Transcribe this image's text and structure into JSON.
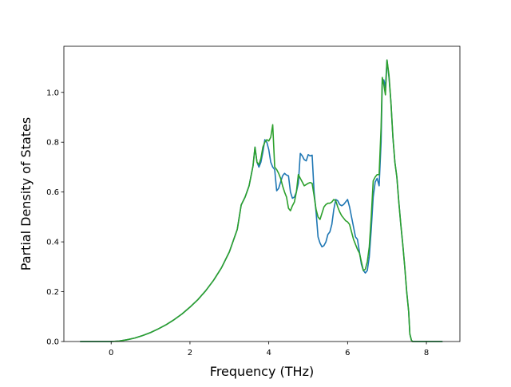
{
  "chart_data": {
    "type": "line",
    "title": "",
    "xlabel": "Frequency (THz)",
    "ylabel": "Partial Density of States",
    "xlim": [
      -1.2,
      8.85
    ],
    "ylim": [
      0.0,
      1.185
    ],
    "xticks": [
      0,
      2,
      4,
      6,
      8
    ],
    "yticks": [
      0.0,
      0.2,
      0.4,
      0.6,
      0.8,
      1.0
    ],
    "xtick_labels": [
      "0",
      "2",
      "4",
      "6",
      "8"
    ],
    "ytick_labels": [
      "0.0",
      "0.2",
      "0.4",
      "0.6",
      "0.8",
      "1.0"
    ],
    "grid": false,
    "legend": "none",
    "series": [
      {
        "color": "#1f77b4",
        "points": [
          [
            -0.78,
            0.0
          ],
          [
            -0.4,
            0.0
          ],
          [
            0.0,
            0.0
          ],
          [
            0.2,
            0.002
          ],
          [
            0.4,
            0.007
          ],
          [
            0.6,
            0.014
          ],
          [
            0.8,
            0.024
          ],
          [
            1.0,
            0.036
          ],
          [
            1.2,
            0.051
          ],
          [
            1.4,
            0.068
          ],
          [
            1.6,
            0.088
          ],
          [
            1.8,
            0.111
          ],
          [
            2.0,
            0.138
          ],
          [
            2.2,
            0.168
          ],
          [
            2.4,
            0.204
          ],
          [
            2.6,
            0.246
          ],
          [
            2.8,
            0.296
          ],
          [
            3.0,
            0.36
          ],
          [
            3.2,
            0.45
          ],
          [
            3.3,
            0.548
          ],
          [
            3.4,
            0.58
          ],
          [
            3.5,
            0.625
          ],
          [
            3.6,
            0.705
          ],
          [
            3.65,
            0.78
          ],
          [
            3.7,
            0.72
          ],
          [
            3.75,
            0.7
          ],
          [
            3.8,
            0.72
          ],
          [
            3.85,
            0.76
          ],
          [
            3.9,
            0.81
          ],
          [
            3.95,
            0.8
          ],
          [
            4.0,
            0.77
          ],
          [
            4.05,
            0.72
          ],
          [
            4.1,
            0.7
          ],
          [
            4.15,
            0.69
          ],
          [
            4.2,
            0.605
          ],
          [
            4.25,
            0.615
          ],
          [
            4.3,
            0.64
          ],
          [
            4.35,
            0.665
          ],
          [
            4.4,
            0.675
          ],
          [
            4.45,
            0.668
          ],
          [
            4.5,
            0.665
          ],
          [
            4.55,
            0.6
          ],
          [
            4.6,
            0.575
          ],
          [
            4.65,
            0.58
          ],
          [
            4.7,
            0.6
          ],
          [
            4.75,
            0.635
          ],
          [
            4.8,
            0.755
          ],
          [
            4.85,
            0.745
          ],
          [
            4.9,
            0.73
          ],
          [
            4.95,
            0.725
          ],
          [
            5.0,
            0.75
          ],
          [
            5.05,
            0.745
          ],
          [
            5.1,
            0.748
          ],
          [
            5.15,
            0.6
          ],
          [
            5.2,
            0.52
          ],
          [
            5.25,
            0.42
          ],
          [
            5.3,
            0.395
          ],
          [
            5.35,
            0.38
          ],
          [
            5.4,
            0.385
          ],
          [
            5.45,
            0.4
          ],
          [
            5.5,
            0.43
          ],
          [
            5.55,
            0.44
          ],
          [
            5.6,
            0.47
          ],
          [
            5.65,
            0.53
          ],
          [
            5.7,
            0.57
          ],
          [
            5.75,
            0.565
          ],
          [
            5.8,
            0.55
          ],
          [
            5.85,
            0.545
          ],
          [
            5.9,
            0.55
          ],
          [
            5.95,
            0.56
          ],
          [
            6.0,
            0.57
          ],
          [
            6.05,
            0.54
          ],
          [
            6.1,
            0.5
          ],
          [
            6.15,
            0.46
          ],
          [
            6.2,
            0.42
          ],
          [
            6.25,
            0.41
          ],
          [
            6.3,
            0.36
          ],
          [
            6.35,
            0.31
          ],
          [
            6.4,
            0.285
          ],
          [
            6.45,
            0.275
          ],
          [
            6.5,
            0.285
          ],
          [
            6.55,
            0.34
          ],
          [
            6.6,
            0.45
          ],
          [
            6.65,
            0.58
          ],
          [
            6.7,
            0.64
          ],
          [
            6.75,
            0.655
          ],
          [
            6.8,
            0.625
          ],
          [
            6.85,
            0.8
          ],
          [
            6.88,
            1.04
          ],
          [
            6.92,
            1.05
          ],
          [
            6.96,
            1.02
          ],
          [
            7.0,
            1.13
          ],
          [
            7.05,
            1.06
          ],
          [
            7.1,
            0.96
          ],
          [
            7.15,
            0.82
          ],
          [
            7.2,
            0.72
          ],
          [
            7.25,
            0.66
          ],
          [
            7.3,
            0.56
          ],
          [
            7.35,
            0.47
          ],
          [
            7.4,
            0.39
          ],
          [
            7.45,
            0.3
          ],
          [
            7.5,
            0.2
          ],
          [
            7.55,
            0.12
          ],
          [
            7.58,
            0.03
          ],
          [
            7.62,
            0.005
          ],
          [
            7.65,
            0.0
          ],
          [
            7.8,
            0.0
          ],
          [
            8.0,
            0.0
          ],
          [
            8.2,
            0.0
          ],
          [
            8.4,
            0.0
          ]
        ]
      },
      {
        "color": "#2ca02c",
        "points": [
          [
            -0.78,
            0.0
          ],
          [
            -0.4,
            0.0
          ],
          [
            0.0,
            0.0
          ],
          [
            0.2,
            0.002
          ],
          [
            0.4,
            0.007
          ],
          [
            0.6,
            0.014
          ],
          [
            0.8,
            0.024
          ],
          [
            1.0,
            0.036
          ],
          [
            1.2,
            0.051
          ],
          [
            1.4,
            0.068
          ],
          [
            1.6,
            0.088
          ],
          [
            1.8,
            0.111
          ],
          [
            2.0,
            0.138
          ],
          [
            2.2,
            0.168
          ],
          [
            2.4,
            0.204
          ],
          [
            2.6,
            0.246
          ],
          [
            2.8,
            0.296
          ],
          [
            3.0,
            0.36
          ],
          [
            3.2,
            0.45
          ],
          [
            3.3,
            0.548
          ],
          [
            3.4,
            0.58
          ],
          [
            3.5,
            0.625
          ],
          [
            3.6,
            0.705
          ],
          [
            3.65,
            0.78
          ],
          [
            3.7,
            0.72
          ],
          [
            3.75,
            0.71
          ],
          [
            3.8,
            0.735
          ],
          [
            3.85,
            0.78
          ],
          [
            3.9,
            0.8
          ],
          [
            3.95,
            0.81
          ],
          [
            4.0,
            0.805
          ],
          [
            4.05,
            0.82
          ],
          [
            4.1,
            0.87
          ],
          [
            4.15,
            0.7
          ],
          [
            4.2,
            0.69
          ],
          [
            4.25,
            0.675
          ],
          [
            4.3,
            0.655
          ],
          [
            4.35,
            0.625
          ],
          [
            4.4,
            0.6
          ],
          [
            4.45,
            0.58
          ],
          [
            4.5,
            0.535
          ],
          [
            4.55,
            0.525
          ],
          [
            4.6,
            0.545
          ],
          [
            4.65,
            0.56
          ],
          [
            4.7,
            0.6
          ],
          [
            4.75,
            0.67
          ],
          [
            4.8,
            0.655
          ],
          [
            4.85,
            0.64
          ],
          [
            4.9,
            0.625
          ],
          [
            4.95,
            0.63
          ],
          [
            5.0,
            0.635
          ],
          [
            5.05,
            0.638
          ],
          [
            5.1,
            0.635
          ],
          [
            5.15,
            0.585
          ],
          [
            5.2,
            0.53
          ],
          [
            5.25,
            0.5
          ],
          [
            5.3,
            0.49
          ],
          [
            5.35,
            0.515
          ],
          [
            5.4,
            0.54
          ],
          [
            5.45,
            0.55
          ],
          [
            5.5,
            0.555
          ],
          [
            5.55,
            0.555
          ],
          [
            5.6,
            0.56
          ],
          [
            5.65,
            0.57
          ],
          [
            5.7,
            0.565
          ],
          [
            5.75,
            0.54
          ],
          [
            5.8,
            0.52
          ],
          [
            5.85,
            0.505
          ],
          [
            5.9,
            0.495
          ],
          [
            5.95,
            0.485
          ],
          [
            6.0,
            0.48
          ],
          [
            6.05,
            0.47
          ],
          [
            6.1,
            0.44
          ],
          [
            6.15,
            0.41
          ],
          [
            6.2,
            0.39
          ],
          [
            6.25,
            0.37
          ],
          [
            6.3,
            0.355
          ],
          [
            6.35,
            0.32
          ],
          [
            6.4,
            0.285
          ],
          [
            6.45,
            0.29
          ],
          [
            6.5,
            0.32
          ],
          [
            6.55,
            0.38
          ],
          [
            6.6,
            0.5
          ],
          [
            6.65,
            0.645
          ],
          [
            6.7,
            0.66
          ],
          [
            6.75,
            0.67
          ],
          [
            6.8,
            0.67
          ],
          [
            6.85,
            0.86
          ],
          [
            6.88,
            1.06
          ],
          [
            6.92,
            1.03
          ],
          [
            6.96,
            0.99
          ],
          [
            7.0,
            1.13
          ],
          [
            7.05,
            1.07
          ],
          [
            7.1,
            0.96
          ],
          [
            7.15,
            0.82
          ],
          [
            7.2,
            0.72
          ],
          [
            7.25,
            0.66
          ],
          [
            7.3,
            0.56
          ],
          [
            7.35,
            0.47
          ],
          [
            7.4,
            0.39
          ],
          [
            7.45,
            0.3
          ],
          [
            7.5,
            0.2
          ],
          [
            7.55,
            0.12
          ],
          [
            7.58,
            0.03
          ],
          [
            7.62,
            0.005
          ],
          [
            7.65,
            0.0
          ],
          [
            7.8,
            0.0
          ],
          [
            8.0,
            0.0
          ],
          [
            8.2,
            0.0
          ],
          [
            8.4,
            0.0
          ]
        ]
      }
    ]
  }
}
